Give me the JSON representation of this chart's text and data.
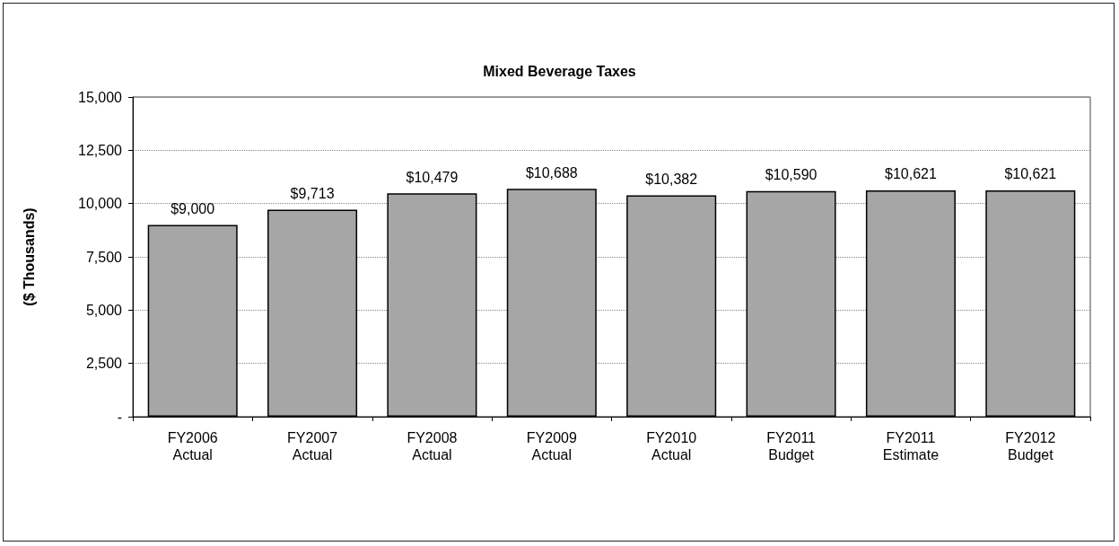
{
  "chart_data": {
    "type": "bar",
    "title": "Mixed Beverage Taxes",
    "ylabel": "($ Thousands)",
    "categories": [
      "FY2006\nActual",
      "FY2007\nActual",
      "FY2008\nActual",
      "FY2009\nActual",
      "FY2010\nActual",
      "FY2011\nBudget",
      "FY2011\nEstimate",
      "FY2012\nBudget"
    ],
    "values": [
      9000,
      9713,
      10479,
      10688,
      10382,
      10590,
      10621,
      10621
    ],
    "value_labels": [
      "$9,000",
      "$9,713",
      "$10,479",
      "$10,688",
      "$10,382",
      "$10,590",
      "$10,621",
      "$10,621"
    ],
    "color": "#a6a6a6",
    "ylim": [
      0,
      15000
    ],
    "yticks": [
      {
        "value": 0,
        "label": "-"
      },
      {
        "value": 2500,
        "label": "2,500"
      },
      {
        "value": 5000,
        "label": "5,000"
      },
      {
        "value": 7500,
        "label": "7,500"
      },
      {
        "value": 10000,
        "label": "10,000"
      },
      {
        "value": 12500,
        "label": "12,500"
      },
      {
        "value": 15000,
        "label": "15,000"
      }
    ],
    "grid": "y"
  }
}
